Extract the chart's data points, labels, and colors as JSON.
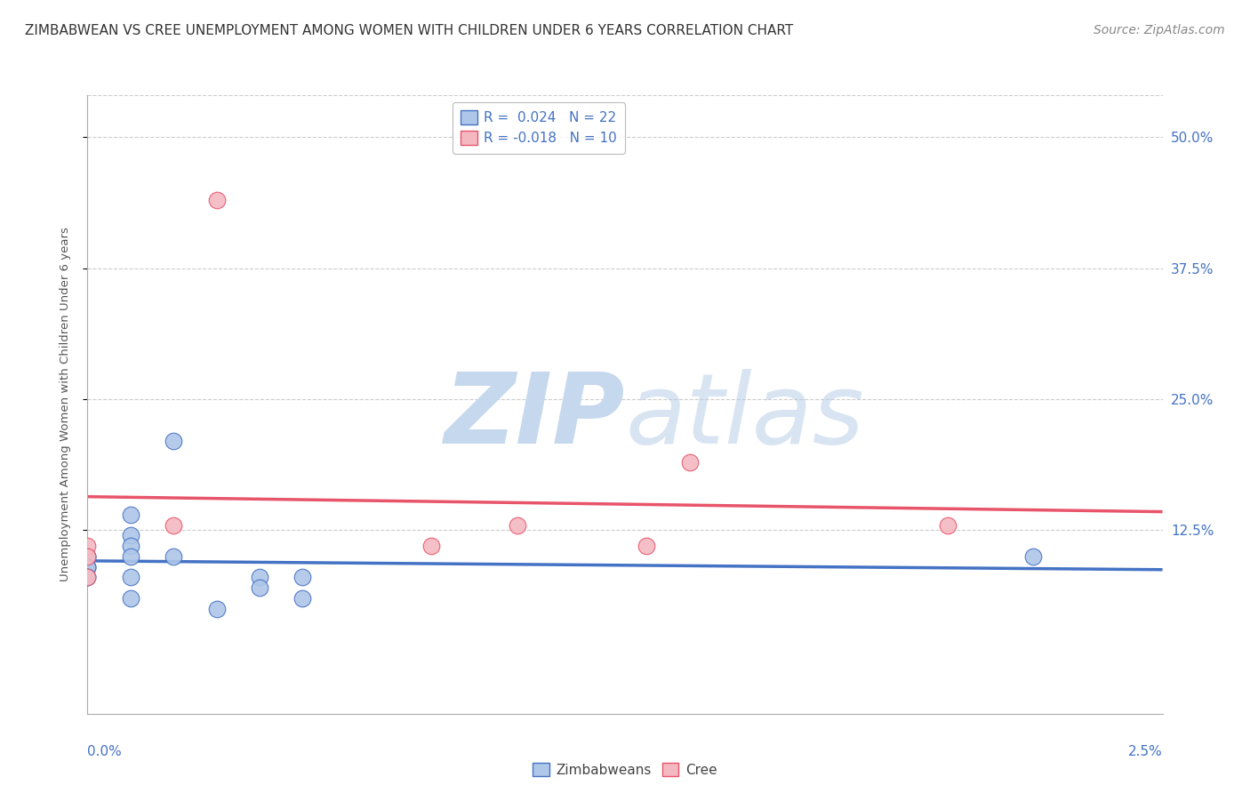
{
  "title": "ZIMBABWEAN VS CREE UNEMPLOYMENT AMONG WOMEN WITH CHILDREN UNDER 6 YEARS CORRELATION CHART",
  "source": "Source: ZipAtlas.com",
  "xlabel_bottom_left": "0.0%",
  "xlabel_bottom_right": "2.5%",
  "ylabel": "Unemployment Among Women with Children Under 6 years",
  "ytick_labels": [
    "12.5%",
    "25.0%",
    "37.5%",
    "50.0%"
  ],
  "ytick_values": [
    0.125,
    0.25,
    0.375,
    0.5
  ],
  "xlim": [
    0.0,
    0.025
  ],
  "ylim": [
    -0.05,
    0.54
  ],
  "zimbabwean_R": 0.024,
  "zimbabwean_N": 22,
  "cree_R": -0.018,
  "cree_N": 10,
  "zimbabwean_color": "#aec6e8",
  "zimbabwean_line_color": "#4472c4",
  "cree_color": "#f4b8c1",
  "cree_line_color": "#e8546a",
  "background_color": "#ffffff",
  "grid_color": "#cccccc",
  "grid_style": "--",
  "zimbabwean_x": [
    0.0,
    0.0,
    0.0,
    0.0,
    0.0,
    0.0,
    0.0,
    0.0,
    0.001,
    0.001,
    0.001,
    0.001,
    0.001,
    0.001,
    0.002,
    0.002,
    0.003,
    0.004,
    0.004,
    0.005,
    0.005,
    0.022
  ],
  "zimbabwean_y": [
    0.1,
    0.1,
    0.1,
    0.09,
    0.09,
    0.09,
    0.08,
    0.08,
    0.14,
    0.12,
    0.11,
    0.1,
    0.08,
    0.06,
    0.21,
    0.1,
    0.05,
    0.08,
    0.07,
    0.08,
    0.06,
    0.1
  ],
  "cree_x": [
    0.0,
    0.0,
    0.0,
    0.002,
    0.003,
    0.008,
    0.01,
    0.013,
    0.014,
    0.02
  ],
  "cree_y": [
    0.11,
    0.1,
    0.08,
    0.13,
    0.44,
    0.11,
    0.13,
    0.11,
    0.19,
    0.13
  ],
  "title_fontsize": 11,
  "axis_label_fontsize": 9.5,
  "tick_fontsize": 11,
  "legend_fontsize": 11,
  "source_fontsize": 10,
  "marker_size": 180,
  "trend_linewidth": 2.5,
  "tick_color": "#4472c4"
}
